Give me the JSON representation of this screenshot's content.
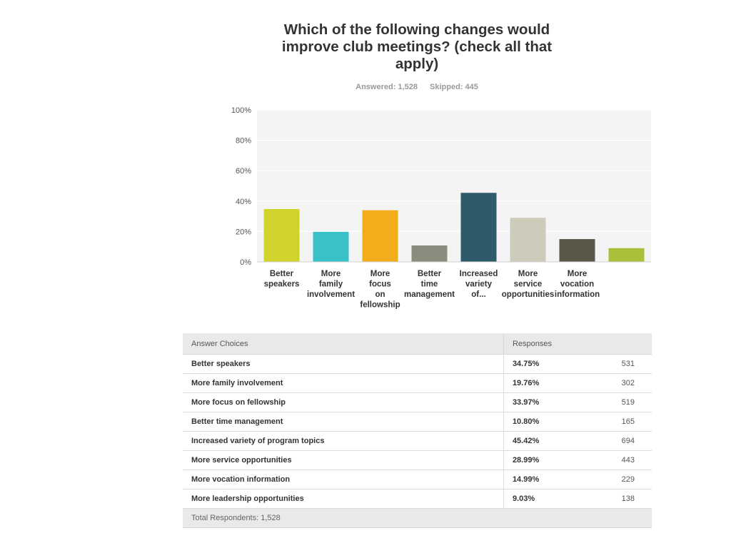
{
  "survey": {
    "question": "Which of the following changes would improve club meetings? (check all that apply)",
    "answered_label": "Answered: 1,528",
    "skipped_label": "Skipped: 445"
  },
  "chart_data": {
    "type": "bar",
    "title": "Which of the following changes would improve club meetings? (check all that apply)",
    "categories": [
      [
        "Better",
        "speakers"
      ],
      [
        "More",
        "family",
        "involvement"
      ],
      [
        "More",
        "focus",
        "on",
        "fellowship"
      ],
      [
        "Better",
        "time",
        "management"
      ],
      [
        "Increased",
        "variety",
        "of..."
      ],
      [
        "More",
        "service",
        "opportunities"
      ],
      [
        "More",
        "vocation",
        "information"
      ],
      [
        ""
      ]
    ],
    "values": [
      34.75,
      19.76,
      33.97,
      10.8,
      45.42,
      28.99,
      14.99,
      9.03
    ],
    "colors": [
      "#d0d32c",
      "#38c1c7",
      "#f2ad1d",
      "#8b8c7e",
      "#2e5a69",
      "#cdcbba",
      "#5b5849",
      "#a9c13a"
    ],
    "y_ticks": [
      "0%",
      "20%",
      "40%",
      "60%",
      "80%",
      "100%"
    ],
    "ylim": [
      0,
      100
    ],
    "grid": true,
    "plot_background": "#f4f4f4",
    "gridline_color": "#ffffff"
  },
  "table": {
    "headers": {
      "choices": "Answer Choices",
      "responses": "Responses"
    },
    "rows": [
      {
        "choice": "Better speakers",
        "percent": "34.75%",
        "count": "531"
      },
      {
        "choice": "More family involvement",
        "percent": "19.76%",
        "count": "302"
      },
      {
        "choice": "More focus on fellowship",
        "percent": "33.97%",
        "count": "519"
      },
      {
        "choice": "Better time management",
        "percent": "10.80%",
        "count": "165"
      },
      {
        "choice": "Increased variety of program topics",
        "percent": "45.42%",
        "count": "694"
      },
      {
        "choice": "More service opportunities",
        "percent": "28.99%",
        "count": "443"
      },
      {
        "choice": "More vocation information",
        "percent": "14.99%",
        "count": "229"
      },
      {
        "choice": "More leadership opportunities",
        "percent": "9.03%",
        "count": "138"
      }
    ],
    "total_label": "Total Respondents: 1,528"
  }
}
